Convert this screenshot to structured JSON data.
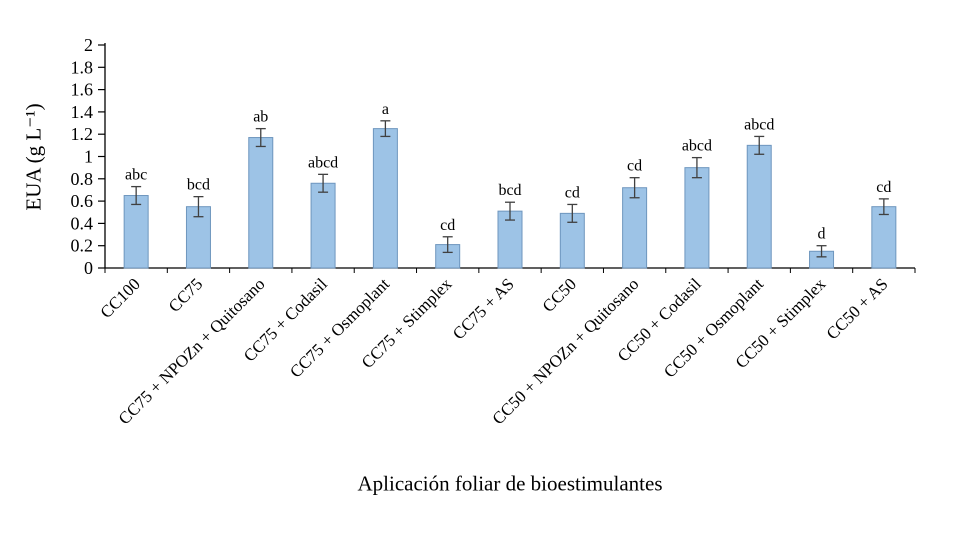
{
  "chart_data": {
    "type": "bar",
    "title": "",
    "xlabel": "Aplicación foliar de bioestimulantes",
    "ylabel": "EUA (g L⁻¹)",
    "categories": [
      "CC100",
      "CC75",
      "CC75 + NPOZn + Quitosano",
      "CC75 + Codasil",
      "CC75 + Osmoplant",
      "CC75 + Stimplex",
      "CC75 + AS",
      "CC50",
      "CC50 + NPOZn + Quitosano",
      "CC50 + Codasil",
      "CC50 + Osmoplant",
      "CC50 + Stimplex",
      "CC50 + AS"
    ],
    "values": [
      0.65,
      0.55,
      1.17,
      0.76,
      1.25,
      0.21,
      0.51,
      0.49,
      0.72,
      0.9,
      1.1,
      0.15,
      0.55
    ],
    "errors": [
      0.08,
      0.09,
      0.08,
      0.08,
      0.07,
      0.07,
      0.08,
      0.08,
      0.09,
      0.09,
      0.08,
      0.05,
      0.07
    ],
    "sig_labels": [
      "abc",
      "bcd",
      "ab",
      "abcd",
      "a",
      "cd",
      "bcd",
      "cd",
      "cd",
      "abcd",
      "abcd",
      "d",
      "cd"
    ],
    "ylim": [
      0,
      2
    ],
    "yticks": [
      "0",
      "0.2",
      "0.4",
      "0.6",
      "0.8",
      "1",
      "1.2",
      "1.4",
      "1.6",
      "1.8",
      "2"
    ],
    "grid": "off",
    "legend": "none",
    "bar_color": "#9DC3E6",
    "bar_border_color": "#6E96BE",
    "error_bar_color": "#404040",
    "axis_color": "#000000"
  }
}
